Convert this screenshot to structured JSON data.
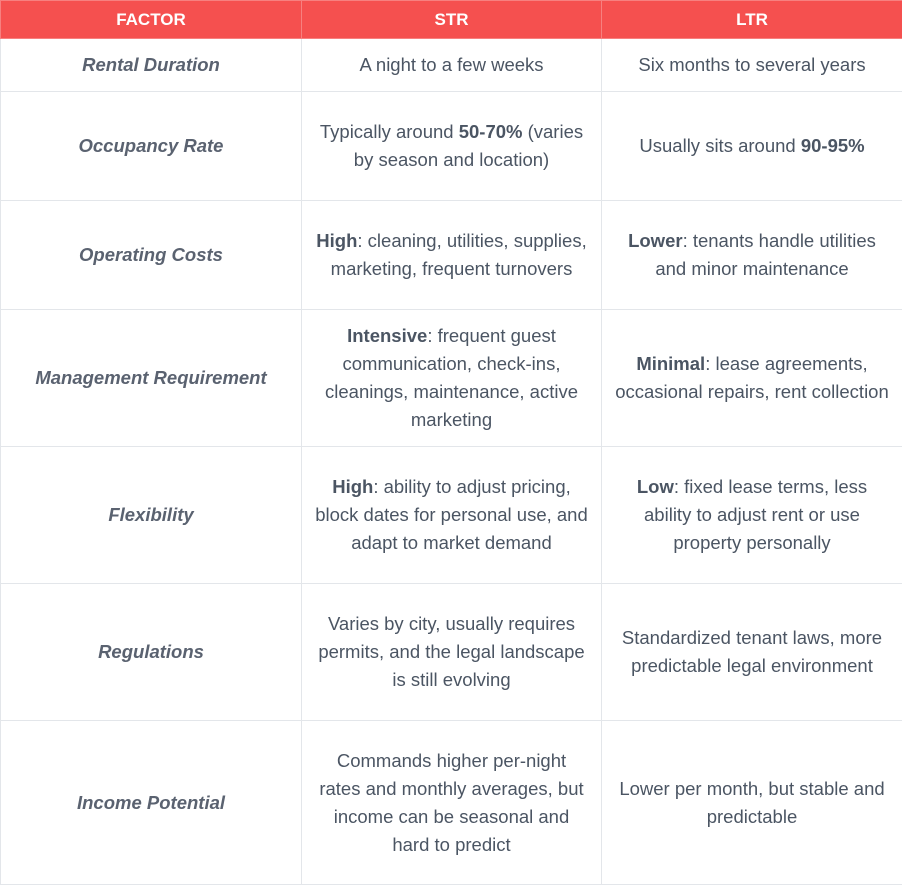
{
  "table": {
    "headers": [
      "FACTOR",
      "STR",
      "LTR"
    ],
    "rows": [
      {
        "factor": "Rental Duration",
        "str": {
          "strong": "",
          "text": "A night to a few weeks"
        },
        "ltr": {
          "strong": "",
          "text": "Six months to several years"
        }
      },
      {
        "factor": "Occupancy Rate",
        "str": {
          "pre": "Typically around ",
          "strong": "50-70%",
          "text": " (varies by season and location)"
        },
        "ltr": {
          "pre": "Usually sits around ",
          "strong": "90-95%",
          "text": ""
        }
      },
      {
        "factor": "Operating Costs",
        "str": {
          "strong": "High",
          "text": ": cleaning, utilities, supplies, marketing, frequent turnovers"
        },
        "ltr": {
          "strong": "Lower",
          "text": ": tenants handle utilities and minor maintenance"
        }
      },
      {
        "factor": "Management Requirement",
        "str": {
          "strong": "Intensive",
          "text": ": frequent guest communication, check-ins, cleanings, maintenance, active marketing"
        },
        "ltr": {
          "strong": "Minimal",
          "text": ": lease agreements, occasional repairs, rent collection"
        }
      },
      {
        "factor": "Flexibility",
        "str": {
          "strong": "High",
          "text": ": ability to adjust pricing, block dates for personal use, and adapt to market demand"
        },
        "ltr": {
          "strong": "Low",
          "text": ": fixed lease terms, less ability to adjust rent or use property personally"
        }
      },
      {
        "factor": "Regulations",
        "str": {
          "strong": "",
          "text": "Varies by city, usually requires permits, and the legal landscape is still evolving"
        },
        "ltr": {
          "strong": "",
          "text": "Standardized tenant laws, more predictable legal environment"
        }
      },
      {
        "factor": "Income Potential",
        "str": {
          "strong": "",
          "text": "Commands higher per-night rates and monthly averages, but income can be seasonal and hard to predict"
        },
        "ltr": {
          "strong": "",
          "text": "Lower per month, but stable and predictable"
        }
      }
    ]
  }
}
